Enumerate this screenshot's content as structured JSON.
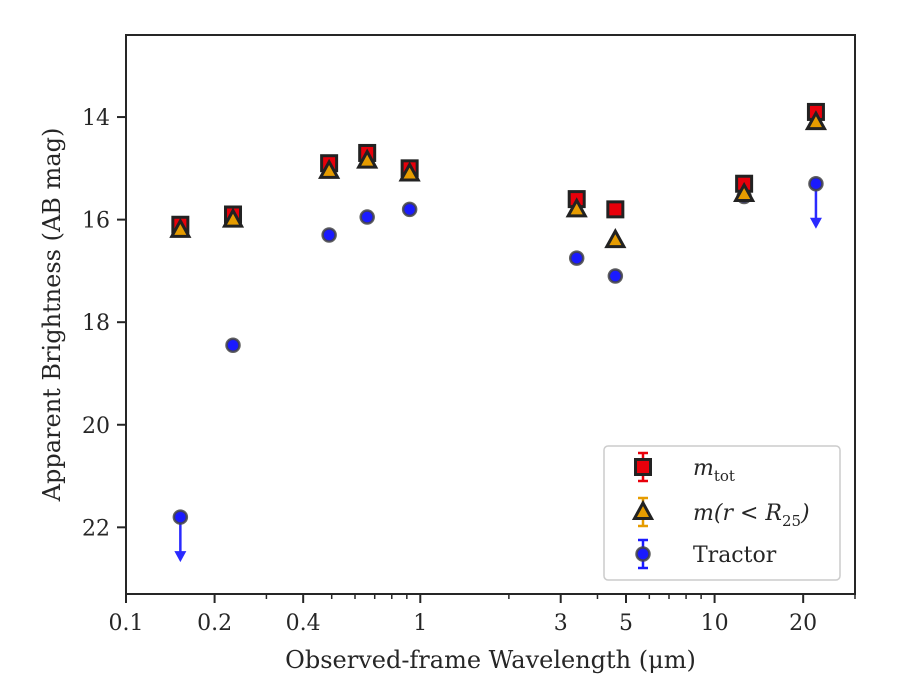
{
  "chart_data": {
    "type": "scatter",
    "title": "",
    "xlabel": "Observed-frame Wavelength (μm)",
    "ylabel": "Apparent Brightness (AB mag)",
    "xscale": "log",
    "xlim": [
      0.1,
      30
    ],
    "ylim": [
      23.3,
      12.4
    ],
    "y_inverted": true,
    "grid": false,
    "legend_position": "lower-right",
    "x_ticks": [
      {
        "value": 0.1,
        "label": "0.1"
      },
      {
        "value": 0.2,
        "label": "0.2"
      },
      {
        "value": 0.4,
        "label": "0.4"
      },
      {
        "value": 1,
        "label": "1"
      },
      {
        "value": 3,
        "label": "3"
      },
      {
        "value": 5,
        "label": "5"
      },
      {
        "value": 10,
        "label": "10"
      },
      {
        "value": 20,
        "label": "20"
      }
    ],
    "x_minor_ticks": [
      0.3,
      0.5,
      0.6,
      0.7,
      0.8,
      0.9,
      2,
      4,
      6,
      7,
      8,
      9,
      30
    ],
    "y_ticks": [
      {
        "value": 14,
        "label": "14"
      },
      {
        "value": 16,
        "label": "16"
      },
      {
        "value": 18,
        "label": "18"
      },
      {
        "value": 20,
        "label": "20"
      },
      {
        "value": 22,
        "label": "22"
      }
    ],
    "series": [
      {
        "name": "m_tot",
        "legend_main": "m",
        "legend_sub": "tot",
        "marker": "square",
        "color": "#e8000b",
        "edge": "#222222",
        "points": [
          {
            "x": 0.153,
            "y": 16.1
          },
          {
            "x": 0.231,
            "y": 15.9
          },
          {
            "x": 0.49,
            "y": 14.9
          },
          {
            "x": 0.66,
            "y": 14.7
          },
          {
            "x": 0.92,
            "y": 15.0
          },
          {
            "x": 3.4,
            "y": 15.6
          },
          {
            "x": 4.6,
            "y": 15.8
          },
          {
            "x": 12.6,
            "y": 15.3
          },
          {
            "x": 22.1,
            "y": 13.9
          }
        ]
      },
      {
        "name": "m(r < R25)",
        "legend_main": "m(r < R",
        "legend_sub": "25",
        "legend_tail": ")",
        "marker": "triangle",
        "color": "#e69c00",
        "edge": "#222222",
        "points": [
          {
            "x": 0.153,
            "y": 16.2
          },
          {
            "x": 0.231,
            "y": 16.0
          },
          {
            "x": 0.49,
            "y": 15.05
          },
          {
            "x": 0.66,
            "y": 14.85
          },
          {
            "x": 0.92,
            "y": 15.1
          },
          {
            "x": 3.4,
            "y": 15.8
          },
          {
            "x": 4.6,
            "y": 16.4
          },
          {
            "x": 12.6,
            "y": 15.5
          },
          {
            "x": 22.1,
            "y": 14.1
          }
        ]
      },
      {
        "name": "Tractor",
        "legend_main": "Tractor",
        "marker": "circle",
        "color": "#1a1aff",
        "edge": "#444444",
        "points": [
          {
            "x": 0.153,
            "y": 21.8,
            "upper_limit": true
          },
          {
            "x": 0.231,
            "y": 18.45
          },
          {
            "x": 0.49,
            "y": 16.3
          },
          {
            "x": 0.66,
            "y": 15.95
          },
          {
            "x": 0.92,
            "y": 15.8
          },
          {
            "x": 3.4,
            "y": 16.75
          },
          {
            "x": 4.6,
            "y": 17.1
          },
          {
            "x": 12.6,
            "y": 15.55
          },
          {
            "x": 22.1,
            "y": 15.3,
            "upper_limit": true
          }
        ]
      }
    ]
  }
}
